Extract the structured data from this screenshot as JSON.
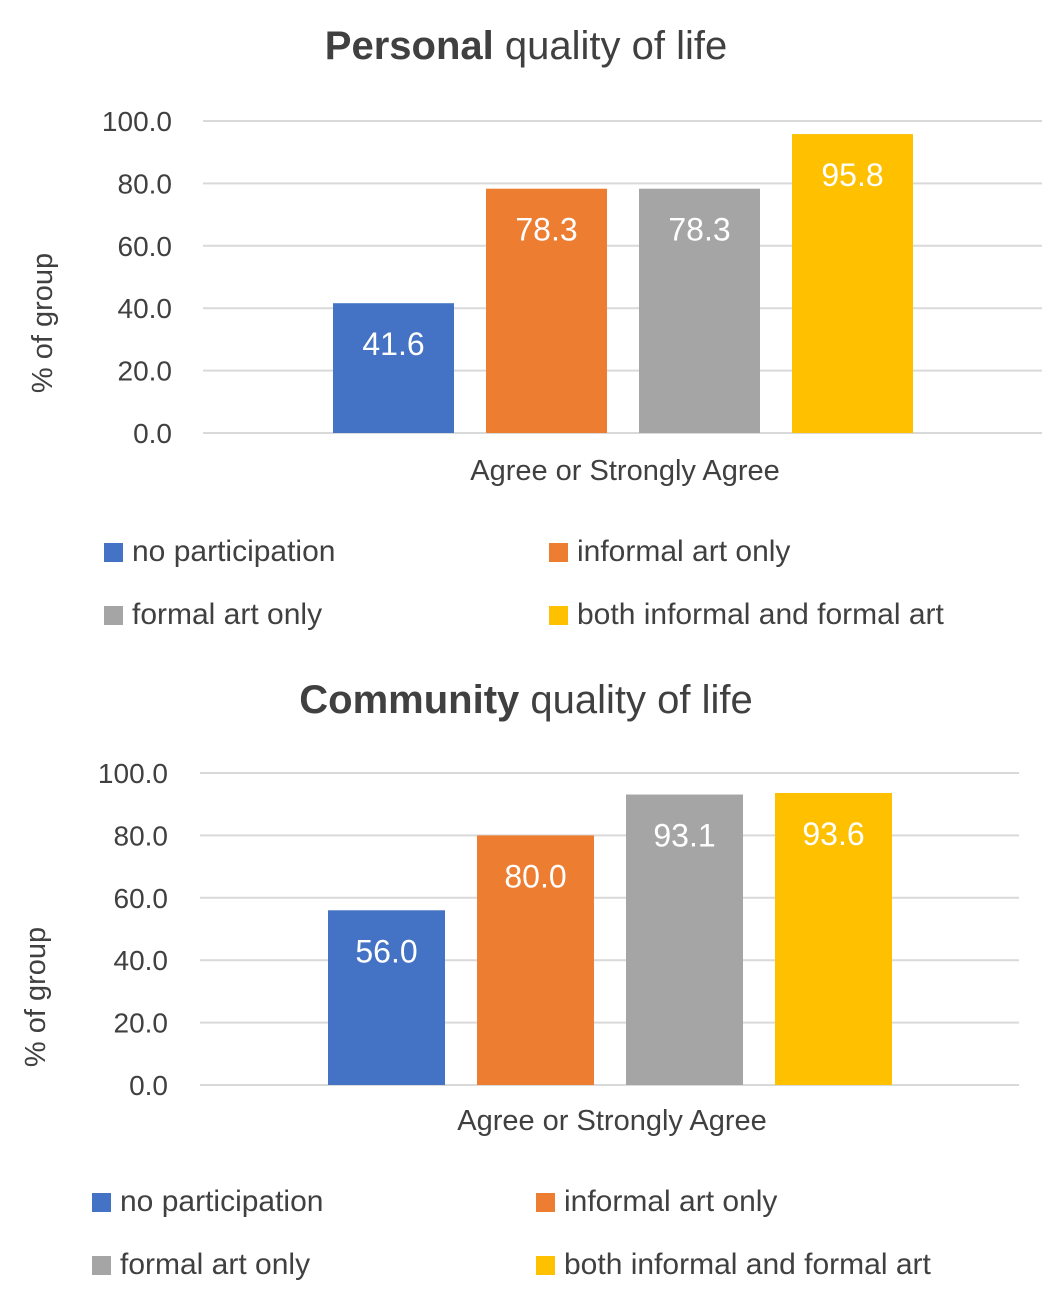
{
  "chart_data": [
    {
      "type": "bar",
      "title_bold": "Personal",
      "title_rest": " quality of life",
      "xlabel": "",
      "ylabel": "% of group",
      "categories": [
        "Agree or Strongly Agree"
      ],
      "ylim": [
        0,
        100
      ],
      "yticks": [
        "0.0",
        "20.0",
        "40.0",
        "60.0",
        "80.0",
        "100.0"
      ],
      "series": [
        {
          "name": "no participation",
          "values": [
            41.6
          ],
          "label": "41.6",
          "color": "#4472C4"
        },
        {
          "name": "informal art only",
          "values": [
            78.3
          ],
          "label": "78.3",
          "color": "#ED7D31"
        },
        {
          "name": "formal art only",
          "values": [
            78.3
          ],
          "label": "78.3",
          "color": "#A5A5A5"
        },
        {
          "name": "both informal and formal art",
          "values": [
            95.8
          ],
          "label": "95.8",
          "color": "#FFC000"
        }
      ],
      "grid": true,
      "legend_position": "bottom"
    },
    {
      "type": "bar",
      "title_bold": "Community",
      "title_rest": " quality of life",
      "xlabel": "",
      "ylabel": "% of group",
      "categories": [
        "Agree or Strongly Agree"
      ],
      "ylim": [
        0,
        100
      ],
      "yticks": [
        "0.0",
        "20.0",
        "40.0",
        "60.0",
        "80.0",
        "100.0"
      ],
      "series": [
        {
          "name": "no participation",
          "values": [
            56.0
          ],
          "label": "56.0",
          "color": "#4472C4"
        },
        {
          "name": "informal art only",
          "values": [
            80.0
          ],
          "label": "80.0",
          "color": "#ED7D31"
        },
        {
          "name": "formal art only",
          "values": [
            93.1
          ],
          "label": "93.1",
          "color": "#A5A5A5"
        },
        {
          "name": "both informal and formal art",
          "values": [
            93.6
          ],
          "label": "93.6",
          "color": "#FFC000"
        }
      ],
      "grid": true,
      "legend_position": "bottom"
    }
  ]
}
